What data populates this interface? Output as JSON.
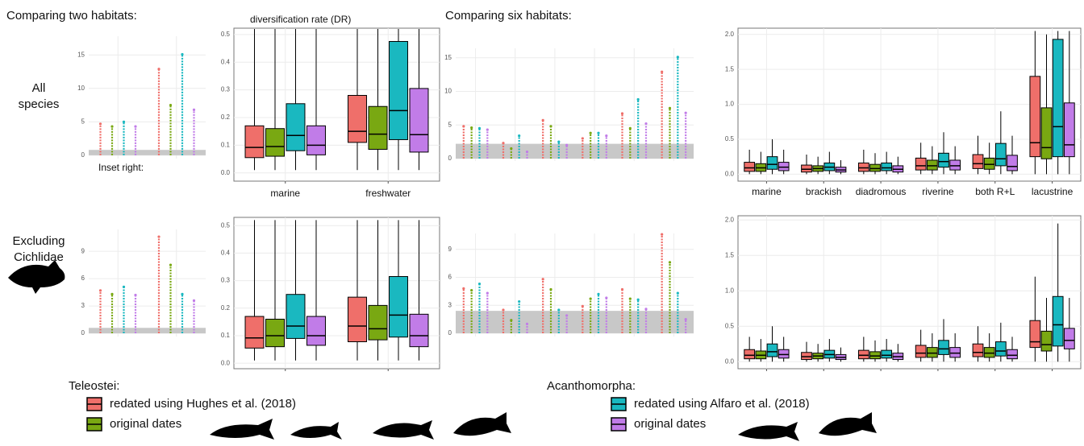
{
  "section_titles": [
    "Comparing two habitats:",
    "Comparing six habitats:"
  ],
  "row_labels": [
    [
      "All",
      "species"
    ],
    [
      "Excluding",
      "Cichlidae"
    ]
  ],
  "inset_note": "Inset right:",
  "legend": [
    {
      "title": "Teleostei:",
      "items": [
        {
          "label": "redated using Hughes et al. (2018)",
          "color": "#ef6f6a"
        },
        {
          "label": "original dates",
          "color": "#79a812"
        }
      ]
    },
    {
      "title": "Acanthomorpha:",
      "items": [
        {
          "label": "redated using Alfaro et al. (2018)",
          "color": "#1ab8c0"
        },
        {
          "label": "original dates",
          "color": "#c17ce8"
        }
      ]
    }
  ],
  "chart_data": [
    {
      "type": "strip",
      "ylim": [
        -0.5,
        17.8
      ],
      "yticks": [
        0,
        5,
        10,
        15
      ],
      "band": [
        0,
        0.8
      ],
      "series": [
        {
          "color": "#ef6f6a",
          "values": [
            4.7,
            12.9
          ]
        },
        {
          "color": "#79a812",
          "values": [
            4.3,
            7.5
          ]
        },
        {
          "color": "#1ab8c0",
          "values": [
            5.0,
            15.1
          ]
        },
        {
          "color": "#c17ce8",
          "values": [
            4.3,
            6.8
          ]
        }
      ]
    },
    {
      "type": "box",
      "ylabel": "diversification rate (DR)",
      "categories": [
        "marine",
        "freshwater"
      ],
      "ylim": [
        -0.03,
        0.523
      ],
      "yticks": [
        {
          "value": 0,
          "label": "0.0"
        },
        0.1,
        0.2,
        0.3,
        0.4,
        0.5
      ],
      "series": [
        {
          "color": "#ef6f6a",
          "values": [
            [
              0.01,
              0.055,
              0.092,
              0.17,
              0.52
            ],
            [
              0.01,
              0.11,
              0.15,
              0.28,
              0.52
            ]
          ]
        },
        {
          "color": "#79a812",
          "values": [
            [
              0.01,
              0.06,
              0.095,
              0.16,
              0.52
            ],
            [
              0.01,
              0.085,
              0.14,
              0.24,
              0.52
            ]
          ]
        },
        {
          "color": "#1ab8c0",
          "values": [
            [
              0.01,
              0.08,
              0.135,
              0.25,
              0.52
            ],
            [
              0.01,
              0.12,
              0.225,
              0.475,
              0.52
            ]
          ]
        },
        {
          "color": "#c17ce8",
          "values": [
            [
              0.01,
              0.065,
              0.1,
              0.17,
              0.52
            ],
            [
              0.01,
              0.075,
              0.138,
              0.305,
              0.52
            ]
          ]
        }
      ]
    },
    {
      "type": "strip",
      "ylim": [
        -0.36,
        16.4
      ],
      "yticks": [
        0,
        5,
        10,
        15
      ],
      "band": [
        0,
        2.2
      ],
      "series": [
        {
          "color": "#ef6f6a",
          "values": [
            4.8,
            2.3,
            5.7,
            3.0,
            6.7,
            12.9
          ]
        },
        {
          "color": "#79a812",
          "values": [
            4.6,
            1.5,
            4.8,
            3.8,
            4.5,
            7.5
          ]
        },
        {
          "color": "#1ab8c0",
          "values": [
            4.5,
            3.4,
            2.5,
            3.8,
            8.8,
            15.1
          ]
        },
        {
          "color": "#c17ce8",
          "values": [
            4.3,
            1.0,
            2.0,
            3.4,
            5.2,
            6.8
          ]
        }
      ]
    },
    {
      "type": "box",
      "categories": [
        "marine",
        "brackish",
        "diadromous",
        "riverine",
        "both R+L",
        "lacustrine"
      ],
      "ylim": [
        -0.1,
        2.09
      ],
      "yticks": [
        {
          "value": 0,
          "label": "0.0"
        },
        0.5,
        {
          "value": 1,
          "label": "1.0"
        },
        1.5,
        {
          "value": 2,
          "label": "2.0"
        }
      ],
      "series": [
        {
          "color": "#ef6f6a",
          "values": [
            [
              0,
              0.04,
              0.09,
              0.17,
              0.35
            ],
            [
              0,
              0.03,
              0.07,
              0.13,
              0.28
            ],
            [
              0,
              0.04,
              0.09,
              0.16,
              0.35
            ],
            [
              0,
              0.06,
              0.12,
              0.23,
              0.45
            ],
            [
              0,
              0.08,
              0.15,
              0.28,
              0.55
            ],
            [
              0,
              0.25,
              0.45,
              1.4,
              2.05
            ]
          ]
        },
        {
          "color": "#79a812",
          "values": [
            [
              0,
              0.04,
              0.09,
              0.15,
              0.32
            ],
            [
              0,
              0.04,
              0.08,
              0.12,
              0.25
            ],
            [
              0,
              0.04,
              0.08,
              0.14,
              0.3
            ],
            [
              0,
              0.06,
              0.12,
              0.2,
              0.4
            ],
            [
              0,
              0.07,
              0.14,
              0.23,
              0.45
            ],
            [
              0,
              0.22,
              0.38,
              0.95,
              2.0
            ]
          ]
        },
        {
          "color": "#1ab8c0",
          "values": [
            [
              0,
              0.07,
              0.14,
              0.25,
              0.5
            ],
            [
              0,
              0.05,
              0.1,
              0.16,
              0.32
            ],
            [
              0,
              0.05,
              0.09,
              0.16,
              0.32
            ],
            [
              0,
              0.1,
              0.18,
              0.3,
              0.6
            ],
            [
              0,
              0.12,
              0.22,
              0.44,
              0.9
            ],
            [
              0,
              0.25,
              0.68,
              1.93,
              2.05
            ]
          ]
        },
        {
          "color": "#c17ce8",
          "values": [
            [
              0,
              0.05,
              0.1,
              0.17,
              0.35
            ],
            [
              0,
              0.03,
              0.06,
              0.1,
              0.2
            ],
            [
              0,
              0.03,
              0.07,
              0.12,
              0.25
            ],
            [
              0,
              0.06,
              0.12,
              0.2,
              0.4
            ],
            [
              0,
              0.05,
              0.11,
              0.27,
              0.55
            ],
            [
              0,
              0.25,
              0.42,
              1.02,
              2.05
            ]
          ]
        }
      ]
    },
    {
      "type": "strip",
      "ylim": [
        -0.35,
        11.4
      ],
      "yticks": [
        0,
        3,
        6,
        9
      ],
      "band": [
        0,
        0.6
      ],
      "series": [
        {
          "color": "#ef6f6a",
          "values": [
            4.7,
            10.6
          ]
        },
        {
          "color": "#79a812",
          "values": [
            4.3,
            7.5
          ]
        },
        {
          "color": "#1ab8c0",
          "values": [
            5.1,
            4.3
          ]
        },
        {
          "color": "#c17ce8",
          "values": [
            4.2,
            3.6
          ]
        }
      ]
    },
    {
      "type": "box",
      "ylim": [
        -0.02,
        0.53
      ],
      "yticks": [
        {
          "value": 0,
          "label": "0.0"
        },
        0.1,
        0.2,
        0.3,
        0.4,
        0.5
      ],
      "series": [
        {
          "color": "#ef6f6a",
          "values": [
            [
              0.01,
              0.055,
              0.092,
              0.17,
              0.52
            ],
            [
              0.01,
              0.078,
              0.135,
              0.24,
              0.52
            ]
          ]
        },
        {
          "color": "#79a812",
          "values": [
            [
              0.01,
              0.06,
              0.1,
              0.16,
              0.52
            ],
            [
              0.01,
              0.085,
              0.125,
              0.21,
              0.52
            ]
          ]
        },
        {
          "color": "#1ab8c0",
          "values": [
            [
              0.01,
              0.09,
              0.135,
              0.25,
              0.52
            ],
            [
              0.01,
              0.095,
              0.175,
              0.315,
              0.52
            ]
          ]
        },
        {
          "color": "#c17ce8",
          "values": [
            [
              0.01,
              0.065,
              0.1,
              0.17,
              0.52
            ],
            [
              0.01,
              0.06,
              0.1,
              0.178,
              0.52
            ]
          ]
        }
      ]
    },
    {
      "type": "strip",
      "ylim": [
        -0.35,
        10.7
      ],
      "yticks": [
        0,
        3,
        6,
        9
      ],
      "band": [
        0,
        2.4
      ],
      "series": [
        {
          "color": "#ef6f6a",
          "values": [
            4.8,
            2.5,
            5.8,
            2.9,
            4.7,
            10.6
          ]
        },
        {
          "color": "#79a812",
          "values": [
            4.6,
            1.4,
            4.7,
            3.7,
            3.7,
            7.6
          ]
        },
        {
          "color": "#1ab8c0",
          "values": [
            5.3,
            3.4,
            2.5,
            4.2,
            3.6,
            4.3
          ]
        },
        {
          "color": "#c17ce8",
          "values": [
            4.3,
            1.0,
            1.9,
            3.8,
            2.6,
            1.5
          ]
        }
      ]
    },
    {
      "type": "box",
      "ylim": [
        -0.1,
        2.06
      ],
      "yticks": [
        {
          "value": 0,
          "label": "0.0"
        },
        0.5,
        {
          "value": 1,
          "label": "1.0"
        },
        1.5,
        {
          "value": 2,
          "label": "2.0"
        }
      ],
      "series": [
        {
          "color": "#ef6f6a",
          "values": [
            [
              0,
              0.04,
              0.09,
              0.17,
              0.35
            ],
            [
              0,
              0.03,
              0.07,
              0.13,
              0.28
            ],
            [
              0,
              0.04,
              0.09,
              0.16,
              0.35
            ],
            [
              0,
              0.06,
              0.12,
              0.23,
              0.45
            ],
            [
              0,
              0.07,
              0.13,
              0.25,
              0.5
            ],
            [
              0,
              0.2,
              0.28,
              0.58,
              1.2
            ]
          ]
        },
        {
          "color": "#79a812",
          "values": [
            [
              0,
              0.04,
              0.09,
              0.15,
              0.32
            ],
            [
              0,
              0.04,
              0.08,
              0.12,
              0.25
            ],
            [
              0,
              0.04,
              0.08,
              0.14,
              0.3
            ],
            [
              0,
              0.06,
              0.12,
              0.2,
              0.4
            ],
            [
              0,
              0.06,
              0.12,
              0.2,
              0.4
            ],
            [
              0,
              0.15,
              0.24,
              0.43,
              0.9
            ]
          ]
        },
        {
          "color": "#1ab8c0",
          "values": [
            [
              0,
              0.07,
              0.14,
              0.25,
              0.5
            ],
            [
              0,
              0.05,
              0.1,
              0.16,
              0.32
            ],
            [
              0,
              0.05,
              0.09,
              0.16,
              0.32
            ],
            [
              0,
              0.1,
              0.18,
              0.3,
              0.6
            ],
            [
              0,
              0.08,
              0.15,
              0.28,
              0.55
            ],
            [
              0,
              0.22,
              0.52,
              0.92,
              1.95
            ]
          ]
        },
        {
          "color": "#c17ce8",
          "values": [
            [
              0,
              0.05,
              0.1,
              0.17,
              0.35
            ],
            [
              0,
              0.03,
              0.06,
              0.1,
              0.2
            ],
            [
              0,
              0.03,
              0.07,
              0.12,
              0.25
            ],
            [
              0,
              0.06,
              0.12,
              0.2,
              0.4
            ],
            [
              0,
              0.04,
              0.09,
              0.17,
              0.35
            ],
            [
              0,
              0.18,
              0.3,
              0.47,
              0.9
            ]
          ]
        }
      ]
    }
  ]
}
